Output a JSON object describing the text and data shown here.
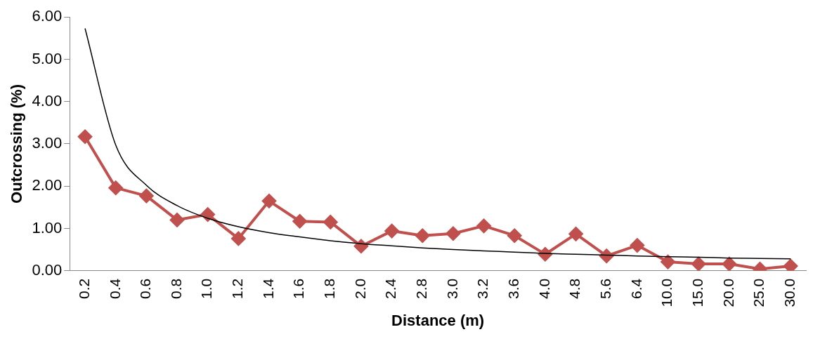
{
  "chart_data": {
    "type": "line",
    "xlabel": "Distance (m)",
    "ylabel": "Outcrossing (%)",
    "categories": [
      "0.2",
      "0.4",
      "0.6",
      "0.8",
      "1.0",
      "1.2",
      "1.4",
      "1.6",
      "1.8",
      "2.0",
      "2.4",
      "2.8",
      "3.0",
      "3.2",
      "3.6",
      "4.0",
      "4.8",
      "5.6",
      "6.4",
      "10.0",
      "15.0",
      "20.0",
      "25.0",
      "30.0"
    ],
    "series": [
      {
        "color": "#c0504d",
        "marker": "diamond",
        "values": [
          3.17,
          1.96,
          1.77,
          1.2,
          1.33,
          0.76,
          1.65,
          1.17,
          1.15,
          0.58,
          0.94,
          0.83,
          0.88,
          1.06,
          0.83,
          0.39,
          0.87,
          0.35,
          0.6,
          0.21,
          0.16,
          0.16,
          0.04,
          0.11
        ]
      },
      {
        "type": "line",
        "color": "#000000",
        "marker": "none",
        "values": [
          5.73,
          2.97,
          2.02,
          1.54,
          1.24,
          1.04,
          0.9,
          0.8,
          0.71,
          0.64,
          0.59,
          0.54,
          0.5,
          0.47,
          0.44,
          0.41,
          0.39,
          0.37,
          0.35,
          0.33,
          0.32,
          0.3,
          0.29,
          0.28
        ]
      }
    ],
    "ylim": [
      0,
      6
    ],
    "yticks": [
      {
        "value": 0,
        "label": "0.00"
      },
      {
        "value": 1,
        "label": "1.00"
      },
      {
        "value": 2,
        "label": "2.00"
      },
      {
        "value": 3,
        "label": "3.00"
      },
      {
        "value": 4,
        "label": "4.00"
      },
      {
        "value": 5,
        "label": "5.00"
      },
      {
        "value": 6,
        "label": "6.00"
      }
    ],
    "grid": false,
    "legend": false
  }
}
